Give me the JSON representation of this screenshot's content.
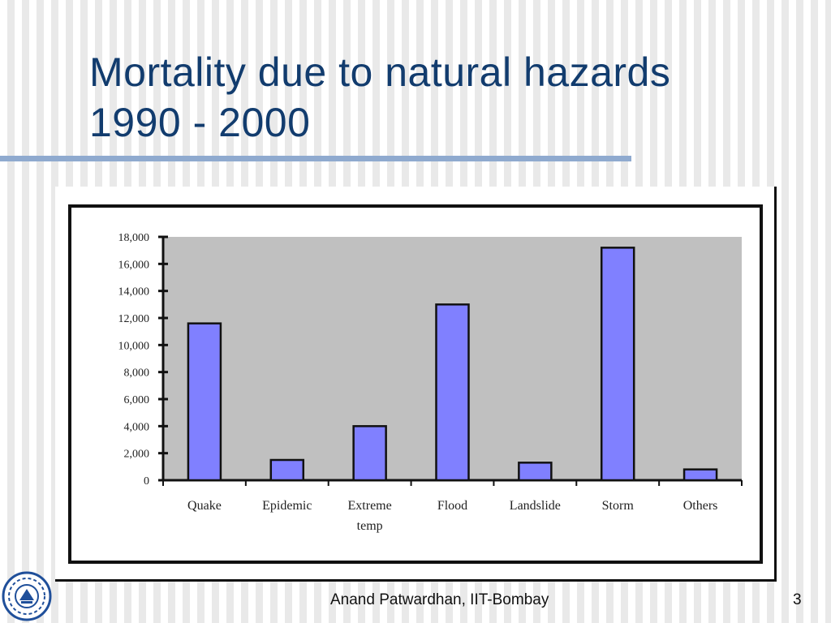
{
  "slide": {
    "title_line1": "Mortality due to natural hazards",
    "title_line2": "1990 - 2000",
    "footer": "Anand Patwardhan, IIT-Bombay",
    "page_number": "3"
  },
  "colors": {
    "title": "#123c6e",
    "rule": "#8faacf",
    "plot_bg": "#c0c0c0",
    "bar_fill": "#8080ff",
    "bar_stroke": "#111111"
  },
  "chart_data": {
    "type": "bar",
    "categories": [
      "Quake",
      "Epidemic",
      "Extreme temp",
      "Flood",
      "Landslide",
      "Storm",
      "Others"
    ],
    "category_label_lines": [
      [
        "Quake"
      ],
      [
        "Epidemic"
      ],
      [
        "Extreme",
        "temp"
      ],
      [
        "Flood"
      ],
      [
        "Landslide"
      ],
      [
        "Storm"
      ],
      [
        "Others"
      ]
    ],
    "values": [
      11600,
      1500,
      4000,
      13000,
      1300,
      17200,
      800
    ],
    "yticks": [
      0,
      2000,
      4000,
      6000,
      8000,
      10000,
      12000,
      14000,
      16000,
      18000
    ],
    "ytick_labels": [
      "0",
      "2,000",
      "4,000",
      "6,000",
      "8,000",
      "10,000",
      "12,000",
      "14,000",
      "16,000",
      "18,000"
    ],
    "ylim": [
      0,
      18000
    ],
    "title": "",
    "xlabel": "",
    "ylabel": "",
    "grid": false,
    "legend": "none"
  }
}
